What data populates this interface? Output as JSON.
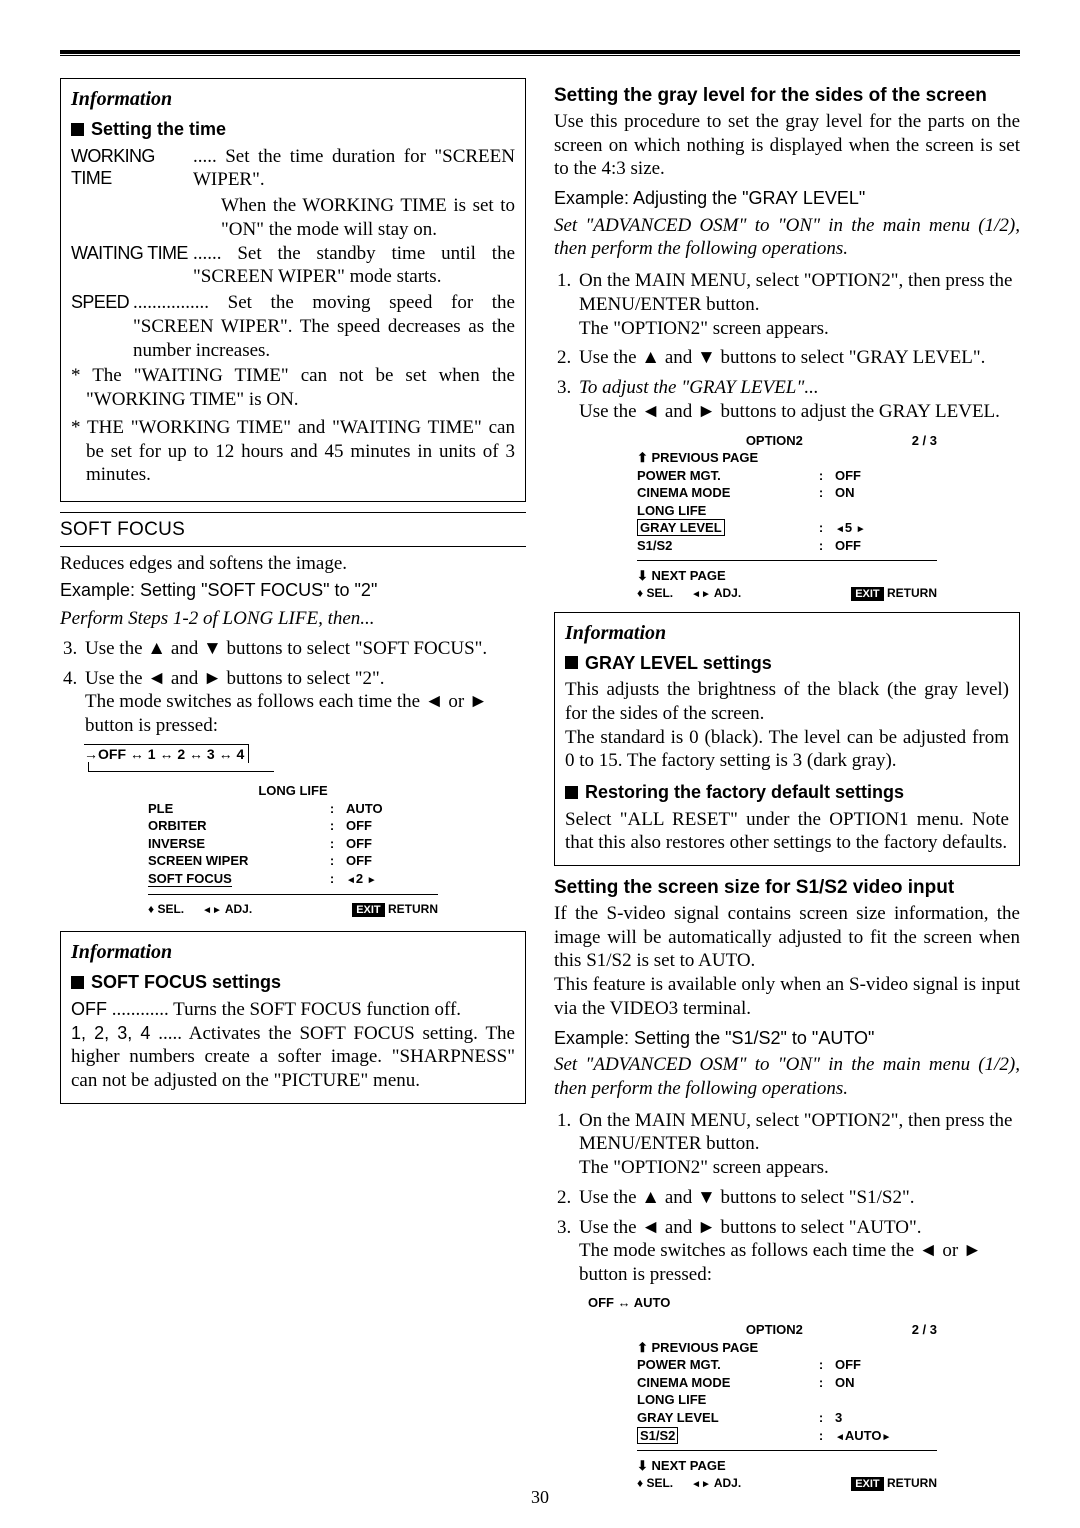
{
  "page_number": "30",
  "left": {
    "box1": {
      "info": "Information",
      "setting_time": "Setting the time",
      "working_time_term": "WORKING TIME",
      "working_time_desc": "..... Set the time duration for \"SCREEN WIPER\".\nWhen the WORKING TIME is set to \"ON\" the mode will stay on.",
      "working_line1": "Set the time duration for \"SCREEN WIPER\".",
      "working_line2": "When the WORKING TIME is set to \"ON\" the mode will stay on.",
      "waiting_time_term": "WAITING TIME",
      "waiting_desc": "Set the standby time until the \"SCREEN WIPER\" mode starts.",
      "speed_term": "SPEED",
      "speed_desc": "Set the moving speed for the \"SCREEN WIPER\". The speed decreases as the number increases.",
      "note1": "* The \"WAITING TIME\" can not be set when the \"WORKING TIME\" is ON.",
      "note2": "* THE \"WORKING TIME\" and \"WAITING TIME\" can be set for up to 12 hours and 45 minutes in units of 3 minutes."
    },
    "soft_focus_head": "SOFT FOCUS",
    "soft_focus_intro": "Reduces edges and softens the image.",
    "soft_focus_example": "Example: Setting \"SOFT FOCUS\" to \"2\"",
    "perform_steps": "Perform Steps 1-2 of LONG LIFE, then...",
    "step3": "Use the ▲ and ▼ buttons to select \"SOFT FOCUS\".",
    "step4a": "Use the ◄ and ► buttons to select \"2\".",
    "step4b": "The mode switches as follows each time the ◄ or ► button is pressed:",
    "diagram": "→OFF ↔ 1 ↔ 2  ↔ 3 ↔ 4",
    "menu1": {
      "title": "LONG LIFE",
      "rows": [
        {
          "a": "PLE",
          "b": ":",
          "c": "AUTO"
        },
        {
          "a": "ORBITER",
          "b": ":",
          "c": "OFF"
        },
        {
          "a": "INVERSE",
          "b": ":",
          "c": "OFF"
        },
        {
          "a": "SCREEN WIPER",
          "b": ":",
          "c": "OFF"
        }
      ],
      "highlight_row": {
        "a": "SOFT FOCUS",
        "b": ":",
        "c": "◄2 ►"
      },
      "footer_sel": "SEL.",
      "footer_adj": "ADJ.",
      "footer_exit": "EXIT",
      "footer_return": "RETURN"
    },
    "box2": {
      "info": "Information",
      "sf_settings": "SOFT FOCUS settings",
      "off_term": "OFF",
      "off_desc": "Turns the SOFT FOCUS function off.",
      "nums_term": "1, 2, 3, 4",
      "nums_desc": "Activates the SOFT FOCUS setting. The higher numbers create a softer image. \"SHARPNESS\" can not be adjusted  on the \"PICTURE\" menu."
    }
  },
  "right": {
    "gray_head": "Setting the gray level for the sides of the screen",
    "gray_intro": "Use this procedure to set the gray level for the parts on the screen on which nothing is displayed when the screen is set to the 4:3 size.",
    "gray_example": "Example: Adjusting the \"GRAY LEVEL\"",
    "gray_set_adv": "Set \"ADVANCED OSM\" to \"ON\" in the main menu (1/2), then perform the following operations.",
    "r_step1a": "On the MAIN MENU, select \"OPTION2\", then press the MENU/ENTER button.",
    "r_step1b": "The \"OPTION2\" screen appears.",
    "r_step2": "Use the ▲ and ▼ buttons to select \"GRAY LEVEL\".",
    "r_step3a": "To adjust the \"GRAY LEVEL\"...",
    "r_step3b": "Use the ◄ and ► buttons to adjust the GRAY LEVEL.",
    "menu2": {
      "title": "OPTION2",
      "page": "2 / 3",
      "prev": "PREVIOUS PAGE",
      "rows": [
        {
          "a": "POWER MGT.",
          "b": ":",
          "c": "OFF"
        },
        {
          "a": "CINEMA MODE",
          "b": ":",
          "c": "ON"
        },
        {
          "a": "LONG LIFE",
          "b": "",
          "c": ""
        }
      ],
      "highlight_row": {
        "a": "GRAY LEVEL",
        "b": ":",
        "c": "◄5  ►"
      },
      "post_rows": [
        {
          "a": "S1/S2",
          "b": ":",
          "c": "OFF"
        }
      ],
      "next": "NEXT PAGE",
      "footer_sel": "SEL.",
      "footer_adj": "ADJ.",
      "footer_exit": "EXIT",
      "footer_return": "RETURN"
    },
    "box3": {
      "info": "Information",
      "gl_settings": "GRAY LEVEL settings",
      "gl_p1": "This adjusts the brightness of the black (the gray level) for the sides of the screen.",
      "gl_p2": "The standard is 0 (black). The level can be adjusted from 0 to 15. The factory setting is 3 (dark gray).",
      "rest_head": "Restoring the factory default settings",
      "rest_p": "Select \"ALL RESET\" under the OPTION1 menu. Note that this also restores other settings to the factory defaults."
    },
    "s1s2_head": "Setting the screen size for S1/S2 video input",
    "s1s2_p1": "If the S-video signal contains screen size information, the image will be automatically adjusted to fit the screen when this S1/S2 is set to AUTO.",
    "s1s2_p2": "This feature is available only when an S-video signal is input via the VIDEO3 terminal.",
    "s1s2_example": "Example: Setting the \"S1/S2\" to \"AUTO\"",
    "s1s2_set_adv": "Set \"ADVANCED OSM\" to \"ON\" in the main menu (1/2), then perform the following operations.",
    "s_step1a": "On the MAIN MENU, select \"OPTION2\", then press the MENU/ENTER button.",
    "s_step1b": "The \"OPTION2\" screen appears.",
    "s_step2": "Use the ▲ and ▼ buttons to select \"S1/S2\".",
    "s_step3a": "Use the ◄ and ► buttons to select \"AUTO\".",
    "s_step3b": "The mode switches as follows each time the ◄ or ► button is pressed:",
    "s_diagram": "OFF ↔ AUTO",
    "menu3": {
      "title": "OPTION2",
      "page": "2 / 3",
      "prev": "PREVIOUS PAGE",
      "rows": [
        {
          "a": "POWER MGT.",
          "b": ":",
          "c": "OFF"
        },
        {
          "a": "CINEMA MODE",
          "b": ":",
          "c": "ON"
        },
        {
          "a": "LONG LIFE",
          "b": "",
          "c": ""
        },
        {
          "a": "GRAY LEVEL",
          "b": ":",
          "c": "3"
        }
      ],
      "highlight_row": {
        "a": "S1/S2",
        "b": ":",
        "c": "◄AUTO►"
      },
      "next": "NEXT PAGE",
      "footer_sel": "SEL.",
      "footer_adj": "ADJ.",
      "footer_exit": "EXIT",
      "footer_return": "RETURN"
    }
  }
}
